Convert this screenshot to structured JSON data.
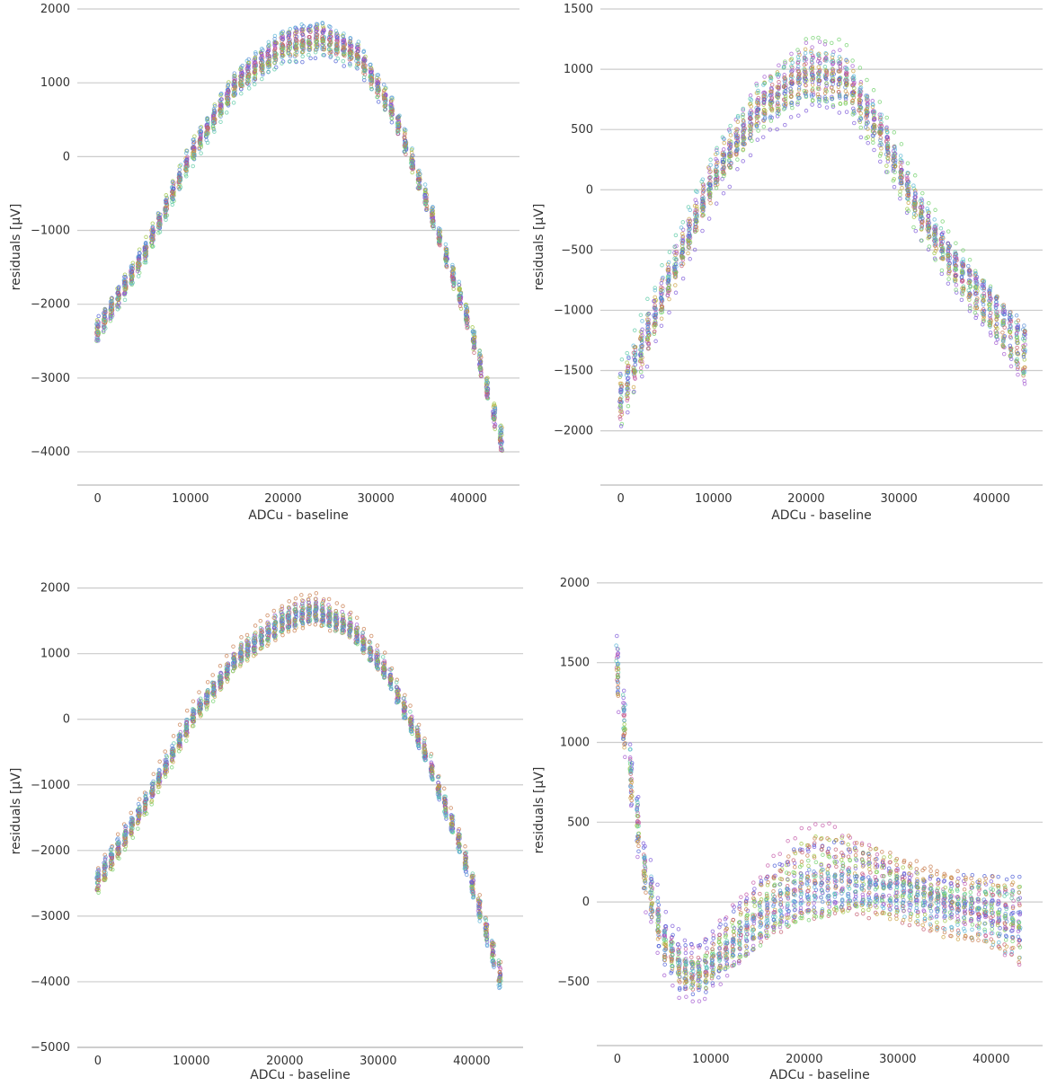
{
  "chart_data": [
    {
      "type": "scatter",
      "title": "",
      "xlabel": "ADCu - baseline",
      "ylabel": "residuals [µV]",
      "xlim": [
        -2200,
        45500
      ],
      "ylim": [
        -4450,
        2000
      ],
      "xticks": [
        0,
        10000,
        20000,
        30000,
        40000
      ],
      "xtick_labels": [
        "0",
        "10000",
        "20000",
        "30000",
        "40000"
      ],
      "yticks": [
        -4000,
        -3000,
        -2000,
        -1000,
        0,
        1000,
        2000
      ],
      "ytick_labels": [
        "−4000",
        "−3000",
        "−2000",
        "−1000",
        "0",
        "1000",
        "2000"
      ],
      "grid": "y",
      "x_range": [
        0,
        43500
      ],
      "curve_points": [
        [
          0,
          -2400
        ],
        [
          5000,
          -1350
        ],
        [
          10000,
          0
        ],
        [
          15000,
          1000
        ],
        [
          20000,
          1500
        ],
        [
          24000,
          1620
        ],
        [
          28000,
          1400
        ],
        [
          32000,
          600
        ],
        [
          36000,
          -750
        ],
        [
          40000,
          -2200
        ],
        [
          43500,
          -3800
        ]
      ],
      "spread_min": 80,
      "spread_max": 220,
      "num_series": 36,
      "seed": 11
    },
    {
      "type": "scatter",
      "title": "",
      "xlabel": "ADCu - baseline",
      "ylabel": "residuals [µV]",
      "xlim": [
        -2200,
        45500
      ],
      "ylim": [
        -2450,
        1500
      ],
      "xticks": [
        0,
        10000,
        20000,
        30000,
        40000
      ],
      "xtick_labels": [
        "0",
        "10000",
        "20000",
        "30000",
        "40000"
      ],
      "yticks": [
        -2000,
        -1500,
        -1000,
        -500,
        0,
        500,
        1000,
        1500
      ],
      "ytick_labels": [
        "−2000",
        "−1500",
        "−1000",
        "−500",
        "0",
        "500",
        "1000",
        "1500"
      ],
      "grid": "y",
      "x_range": [
        0,
        43500
      ],
      "curve_points": [
        [
          0,
          -1750
        ],
        [
          5000,
          -800
        ],
        [
          10000,
          100
        ],
        [
          15000,
          700
        ],
        [
          20000,
          980
        ],
        [
          24000,
          950
        ],
        [
          28000,
          500
        ],
        [
          32000,
          -150
        ],
        [
          36000,
          -620
        ],
        [
          40000,
          -1000
        ],
        [
          43500,
          -1350
        ]
      ],
      "spread_min": 120,
      "spread_max": 300,
      "num_series": 36,
      "seed": 23
    },
    {
      "type": "scatter",
      "title": "",
      "xlabel": "ADCu - baseline",
      "ylabel": "residuals [µV]",
      "xlim": [
        -2200,
        45500
      ],
      "ylim": [
        -5000,
        2200
      ],
      "xticks": [
        0,
        10000,
        20000,
        30000,
        40000
      ],
      "xtick_labels": [
        "0",
        "10000",
        "20000",
        "30000",
        "40000"
      ],
      "yticks": [
        -5000,
        -4000,
        -3000,
        -2000,
        -1000,
        0,
        1000,
        2000
      ],
      "ytick_labels": [
        "−5000",
        "−4000",
        "−3000",
        "−2000",
        "−1000",
        "0",
        "1000",
        "2000"
      ],
      "grid": "y",
      "x_range": [
        0,
        43000
      ],
      "curve_points": [
        [
          0,
          -2450
        ],
        [
          5000,
          -1300
        ],
        [
          10000,
          0
        ],
        [
          15000,
          950
        ],
        [
          20000,
          1500
        ],
        [
          23000,
          1650
        ],
        [
          27000,
          1400
        ],
        [
          31000,
          700
        ],
        [
          35000,
          -500
        ],
        [
          39000,
          -2000
        ],
        [
          43000,
          -3900
        ]
      ],
      "spread_min": 100,
      "spread_max": 250,
      "num_series": 36,
      "seed": 37
    },
    {
      "type": "scatter",
      "title": "",
      "xlabel": "ADCu - baseline",
      "ylabel": "residuals [µV]",
      "xlim": [
        -2200,
        45500
      ],
      "ylim": [
        -900,
        2050
      ],
      "xticks": [
        0,
        10000,
        20000,
        30000,
        40000
      ],
      "xtick_labels": [
        "0",
        "10000",
        "20000",
        "30000",
        "40000"
      ],
      "yticks": [
        -500,
        0,
        500,
        1000,
        1500,
        2000
      ],
      "ytick_labels": [
        "−500",
        "0",
        "500",
        "1000",
        "1500",
        "2000"
      ],
      "grid": "y",
      "x_range": [
        0,
        43000
      ],
      "curve_points": [
        [
          0,
          1500
        ],
        [
          1500,
          800
        ],
        [
          3000,
          200
        ],
        [
          5000,
          -220
        ],
        [
          7000,
          -400
        ],
        [
          9000,
          -420
        ],
        [
          12000,
          -250
        ],
        [
          16000,
          -30
        ],
        [
          20000,
          120
        ],
        [
          24000,
          150
        ],
        [
          28000,
          120
        ],
        [
          32000,
          60
        ],
        [
          36000,
          0
        ],
        [
          40000,
          -30
        ],
        [
          43000,
          -100
        ]
      ],
      "spread_min": 120,
      "spread_max": 320,
      "num_series": 36,
      "seed": 53
    }
  ]
}
